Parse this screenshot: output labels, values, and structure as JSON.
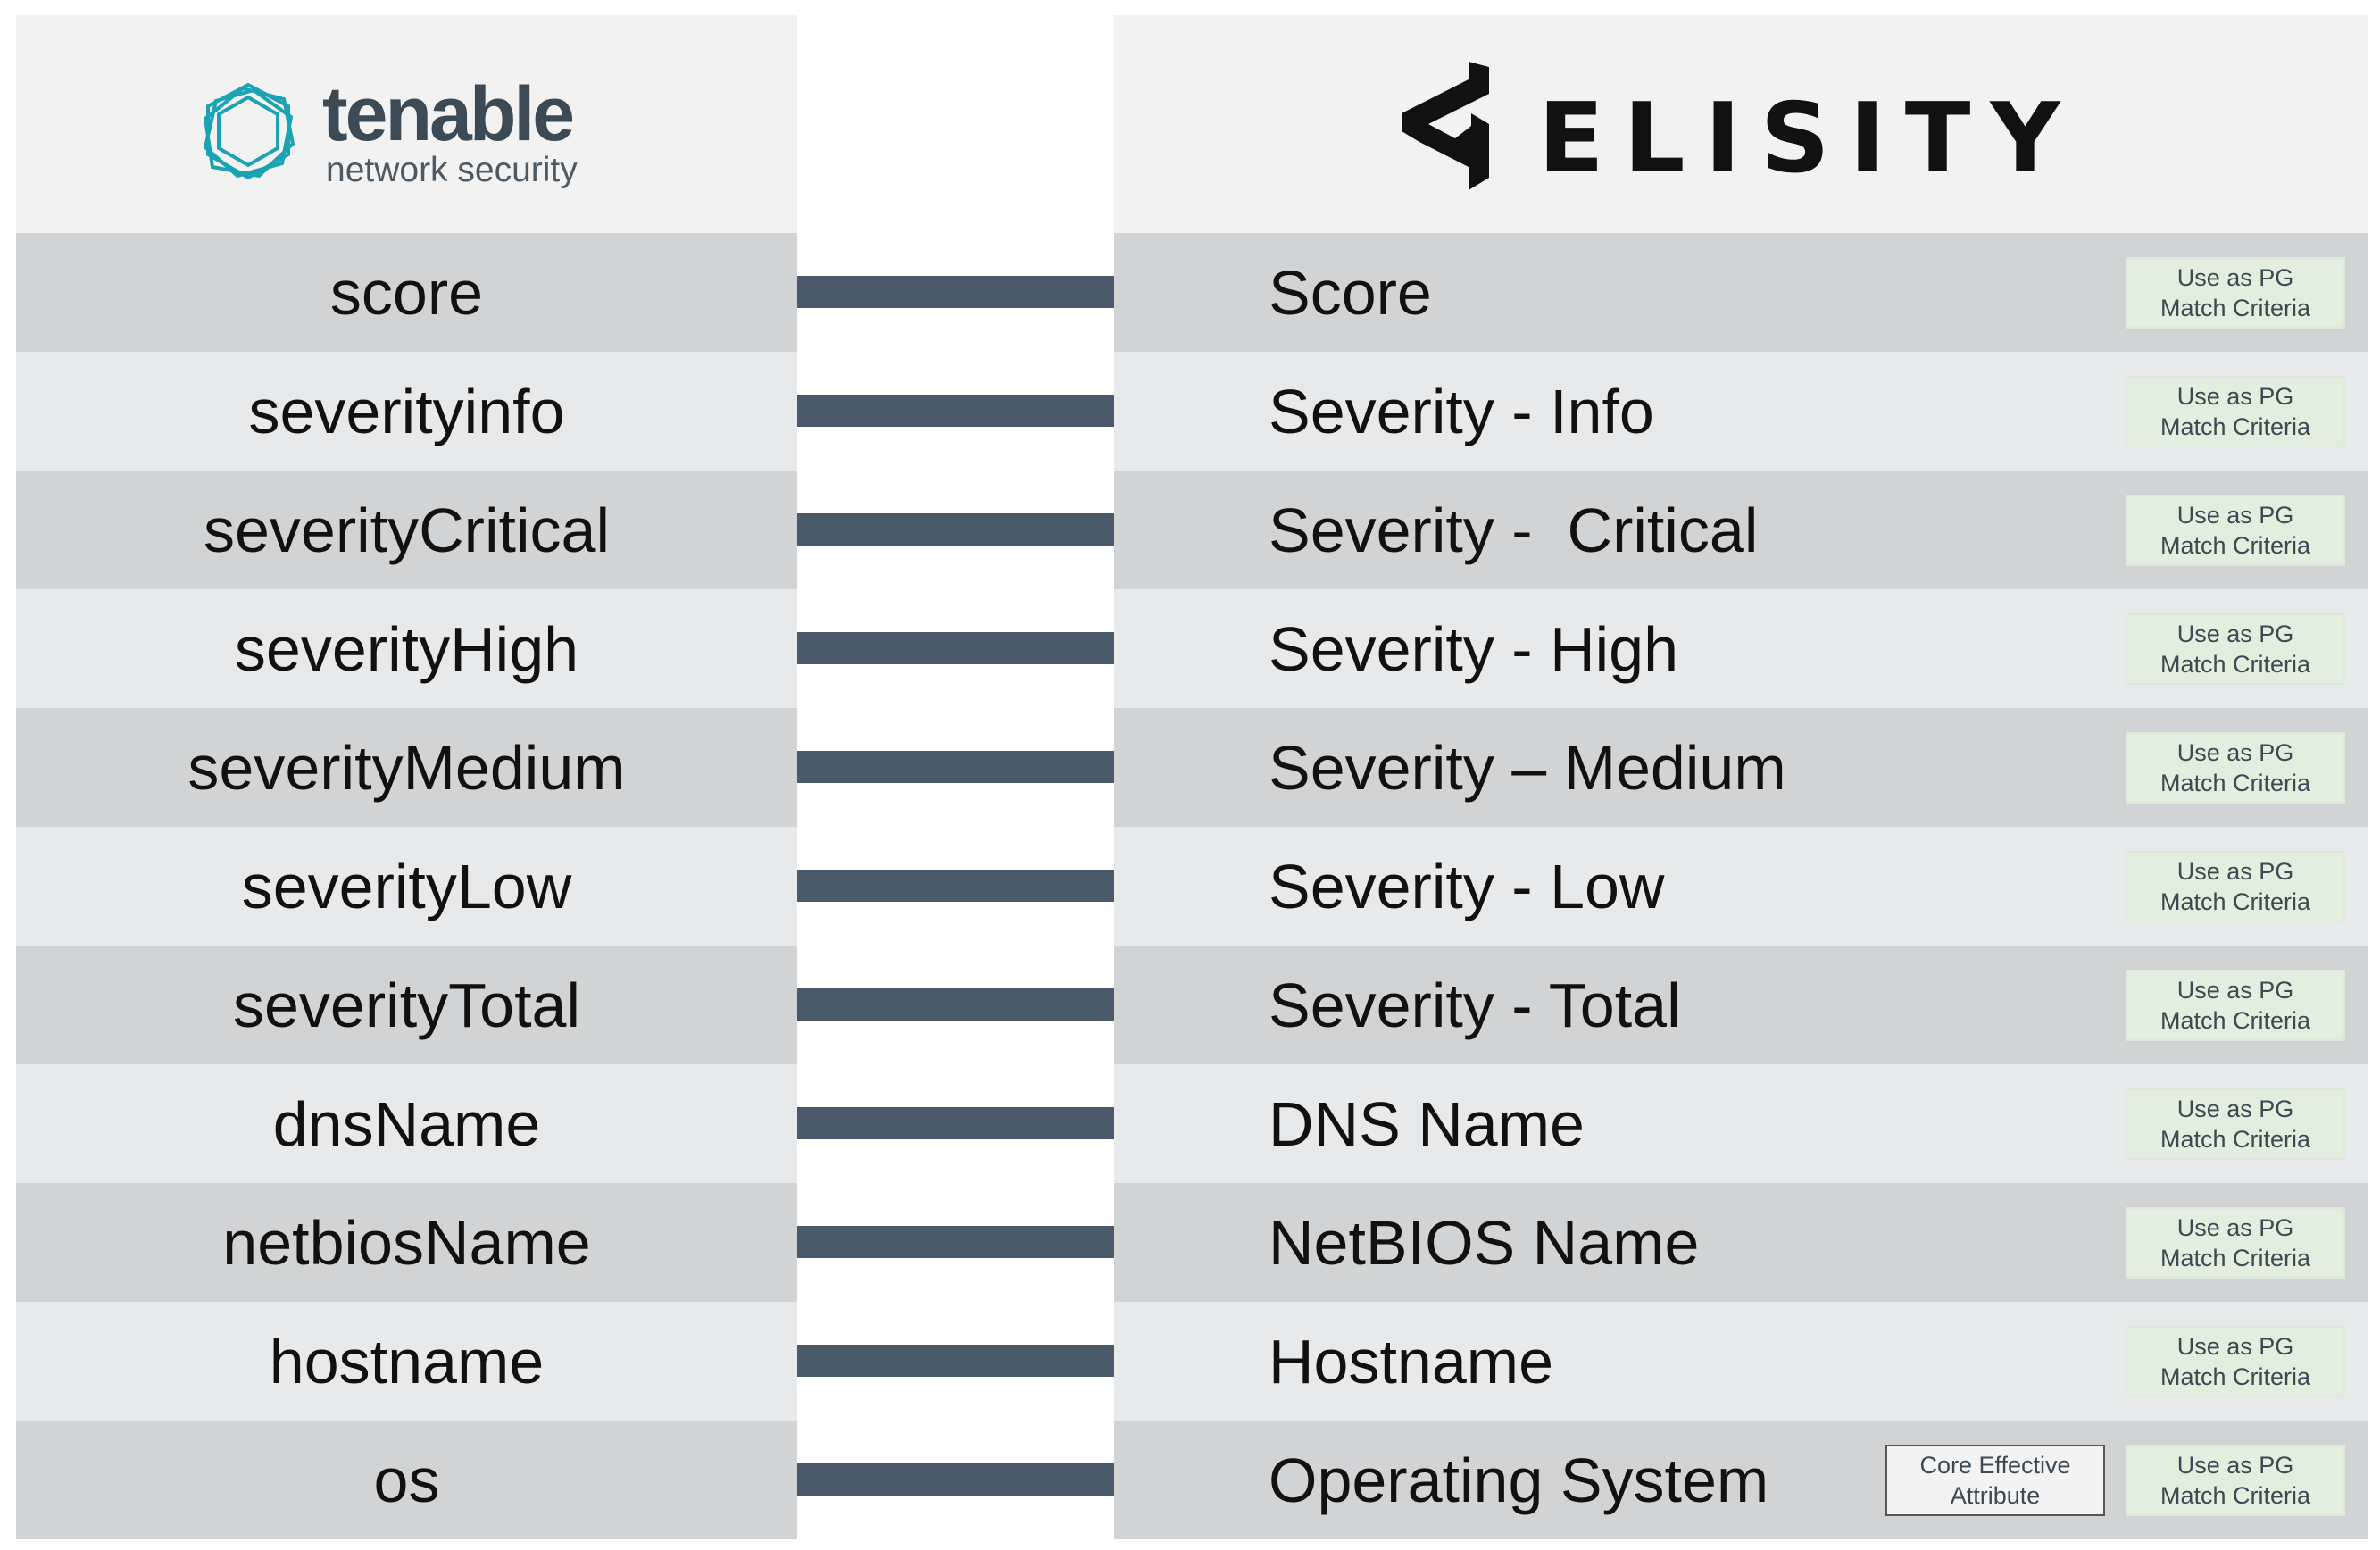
{
  "logos": {
    "source": {
      "name": "tenable",
      "tagline": "network security",
      "color": "#3b4a55",
      "icon_color": "#1ba3b3"
    },
    "target": {
      "name": "ELISITY",
      "color": "#111111"
    }
  },
  "badges": {
    "pg_line1": "Use as PG",
    "pg_line2": "Match Criteria",
    "core_line1": "Core Effective",
    "core_line2": "Attribute"
  },
  "mappings": [
    {
      "source": "score",
      "target": "Score"
    },
    {
      "source": "severityinfo",
      "target": "Severity - Info"
    },
    {
      "source": "severityCritical",
      "target": "Severity -  Critical"
    },
    {
      "source": "severityHigh",
      "target": "Severity - High"
    },
    {
      "source": "severityMedium",
      "target": "Severity – Medium"
    },
    {
      "source": "severityLow",
      "target": "Severity - Low"
    },
    {
      "source": "severityTotal",
      "target": "Severity - Total"
    },
    {
      "source": "dnsName",
      "target": "DNS Name"
    },
    {
      "source": "netbiosName",
      "target": "NetBIOS Name"
    },
    {
      "source": "hostname",
      "target": "Hostname"
    },
    {
      "source": "os",
      "target": "Operating System"
    }
  ],
  "colors": {
    "row_dark": "#d2d3d4",
    "row_light": "#e8e9ea",
    "header_bg": "#f2f2f2",
    "arrow": "#4b5a69",
    "pg_badge_bg": "#e2efdf"
  }
}
